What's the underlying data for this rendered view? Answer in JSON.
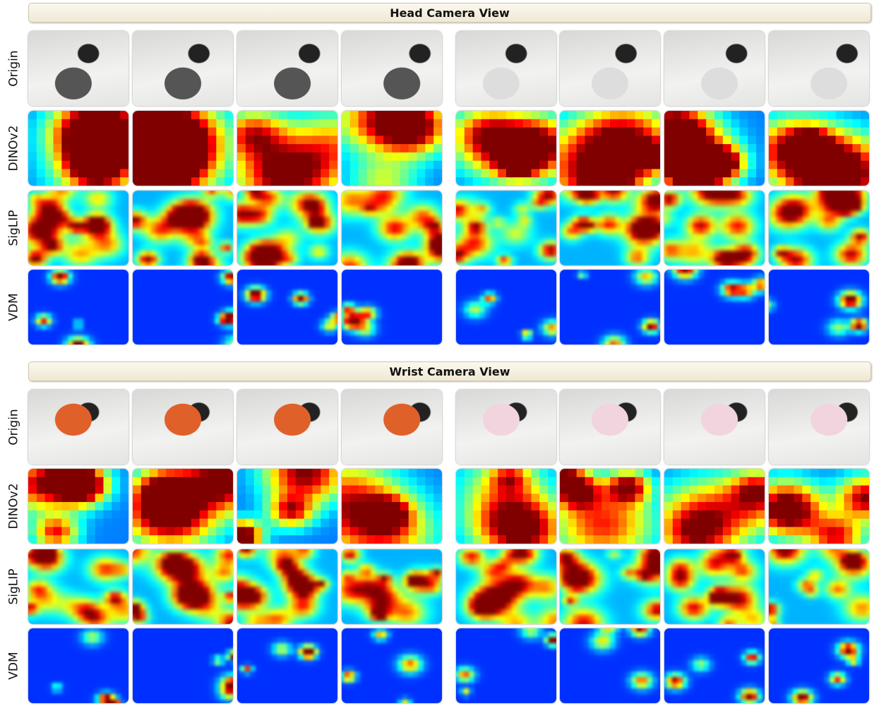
{
  "sections": [
    {
      "title": "Head Camera View",
      "rows": [
        "Origin",
        "DINOv2",
        "SigLIP",
        "VDM"
      ]
    },
    {
      "title": "Wrist Camera View",
      "rows": [
        "Origin",
        "DINOv2",
        "SigLIP",
        "VDM"
      ]
    }
  ]
}
